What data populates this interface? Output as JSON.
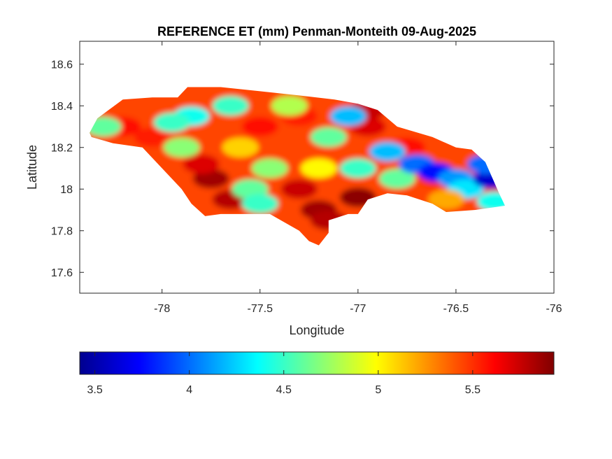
{
  "chart_data": {
    "type": "heatmap",
    "title": "REFERENCE ET (mm) Penman-Monteith 09-Aug-2025",
    "xlabel": "Longitude",
    "ylabel": "Latitude",
    "xlim": [
      -78.42,
      -76.0
    ],
    "ylim": [
      17.5,
      18.71
    ],
    "xticks": [
      -78,
      -77.5,
      -77,
      -76.5,
      -76
    ],
    "yticks": [
      17.6,
      17.8,
      18,
      18.2,
      18.4,
      18.6
    ],
    "grid": false,
    "colormap": "jet",
    "colorbar": {
      "location": "bottom",
      "range": [
        3.42,
        5.93
      ],
      "ticks": [
        3.5,
        4,
        4.5,
        5,
        5.5
      ]
    },
    "region": "Jamaica",
    "outline_lonlat": [
      [
        -78.37,
        18.27
      ],
      [
        -78.33,
        18.34
      ],
      [
        -78.2,
        18.43
      ],
      [
        -78.05,
        18.44
      ],
      [
        -77.92,
        18.44
      ],
      [
        -77.87,
        18.49
      ],
      [
        -77.7,
        18.49
      ],
      [
        -77.5,
        18.47
      ],
      [
        -77.3,
        18.45
      ],
      [
        -77.12,
        18.43
      ],
      [
        -77.0,
        18.41
      ],
      [
        -76.9,
        18.38
      ],
      [
        -76.8,
        18.3
      ],
      [
        -76.62,
        18.25
      ],
      [
        -76.5,
        18.2
      ],
      [
        -76.42,
        18.19
      ],
      [
        -76.35,
        18.13
      ],
      [
        -76.28,
        17.98
      ],
      [
        -76.25,
        17.92
      ],
      [
        -76.4,
        17.9
      ],
      [
        -76.55,
        17.89
      ],
      [
        -76.62,
        17.93
      ],
      [
        -76.75,
        17.97
      ],
      [
        -76.85,
        17.98
      ],
      [
        -76.95,
        17.95
      ],
      [
        -77.0,
        17.88
      ],
      [
        -77.05,
        17.88
      ],
      [
        -77.15,
        17.85
      ],
      [
        -77.15,
        17.79
      ],
      [
        -77.2,
        17.73
      ],
      [
        -77.25,
        17.75
      ],
      [
        -77.3,
        17.8
      ],
      [
        -77.45,
        17.88
      ],
      [
        -77.7,
        17.88
      ],
      [
        -77.78,
        17.87
      ],
      [
        -77.85,
        17.93
      ],
      [
        -77.9,
        18.0
      ],
      [
        -78.0,
        18.1
      ],
      [
        -78.1,
        18.2
      ],
      [
        -78.25,
        18.22
      ],
      [
        -78.36,
        18.25
      ]
    ],
    "hotspots_lonlat_value": [
      [
        -77.75,
        18.05,
        5.85
      ],
      [
        -77.65,
        17.95,
        5.8
      ],
      [
        -77.3,
        18.0,
        5.75
      ],
      [
        -77.2,
        17.9,
        5.85
      ],
      [
        -77.15,
        17.85,
        5.8
      ],
      [
        -77.0,
        17.96,
        5.9
      ],
      [
        -77.8,
        18.12,
        5.7
      ],
      [
        -77.5,
        18.3,
        5.6
      ],
      [
        -77.3,
        18.35,
        5.55
      ],
      [
        -76.95,
        18.3,
        5.7
      ],
      [
        -76.95,
        18.38,
        5.75
      ],
      [
        -76.75,
        18.2,
        5.6
      ],
      [
        -76.6,
        18.05,
        5.5
      ],
      [
        -78.2,
        18.3,
        5.6
      ],
      [
        -78.05,
        18.25,
        5.55
      ],
      [
        -77.85,
        18.35,
        4.4
      ],
      [
        -77.95,
        18.32,
        4.5
      ],
      [
        -78.3,
        18.3,
        4.6
      ],
      [
        -77.9,
        18.2,
        4.7
      ],
      [
        -77.55,
        18.0,
        4.6
      ],
      [
        -77.45,
        18.1,
        4.7
      ],
      [
        -77.5,
        17.93,
        4.5
      ],
      [
        -77.15,
        18.25,
        4.6
      ],
      [
        -77.05,
        18.35,
        4.2
      ],
      [
        -77.0,
        18.1,
        4.5
      ],
      [
        -76.85,
        18.18,
        4.2
      ],
      [
        -76.8,
        18.05,
        4.6
      ],
      [
        -76.7,
        18.12,
        4.0
      ],
      [
        -76.6,
        18.08,
        3.75
      ],
      [
        -76.5,
        18.05,
        4.1
      ],
      [
        -76.45,
        18.0,
        4.3
      ],
      [
        -76.32,
        18.05,
        3.6
      ],
      [
        -76.35,
        18.12,
        4.0
      ],
      [
        -76.3,
        17.94,
        4.4
      ],
      [
        -77.65,
        18.4,
        4.5
      ],
      [
        -77.35,
        18.4,
        4.8
      ],
      [
        -77.2,
        18.1,
        5.0
      ],
      [
        -77.6,
        18.2,
        5.1
      ],
      [
        -76.55,
        17.95,
        5.2
      ]
    ]
  }
}
